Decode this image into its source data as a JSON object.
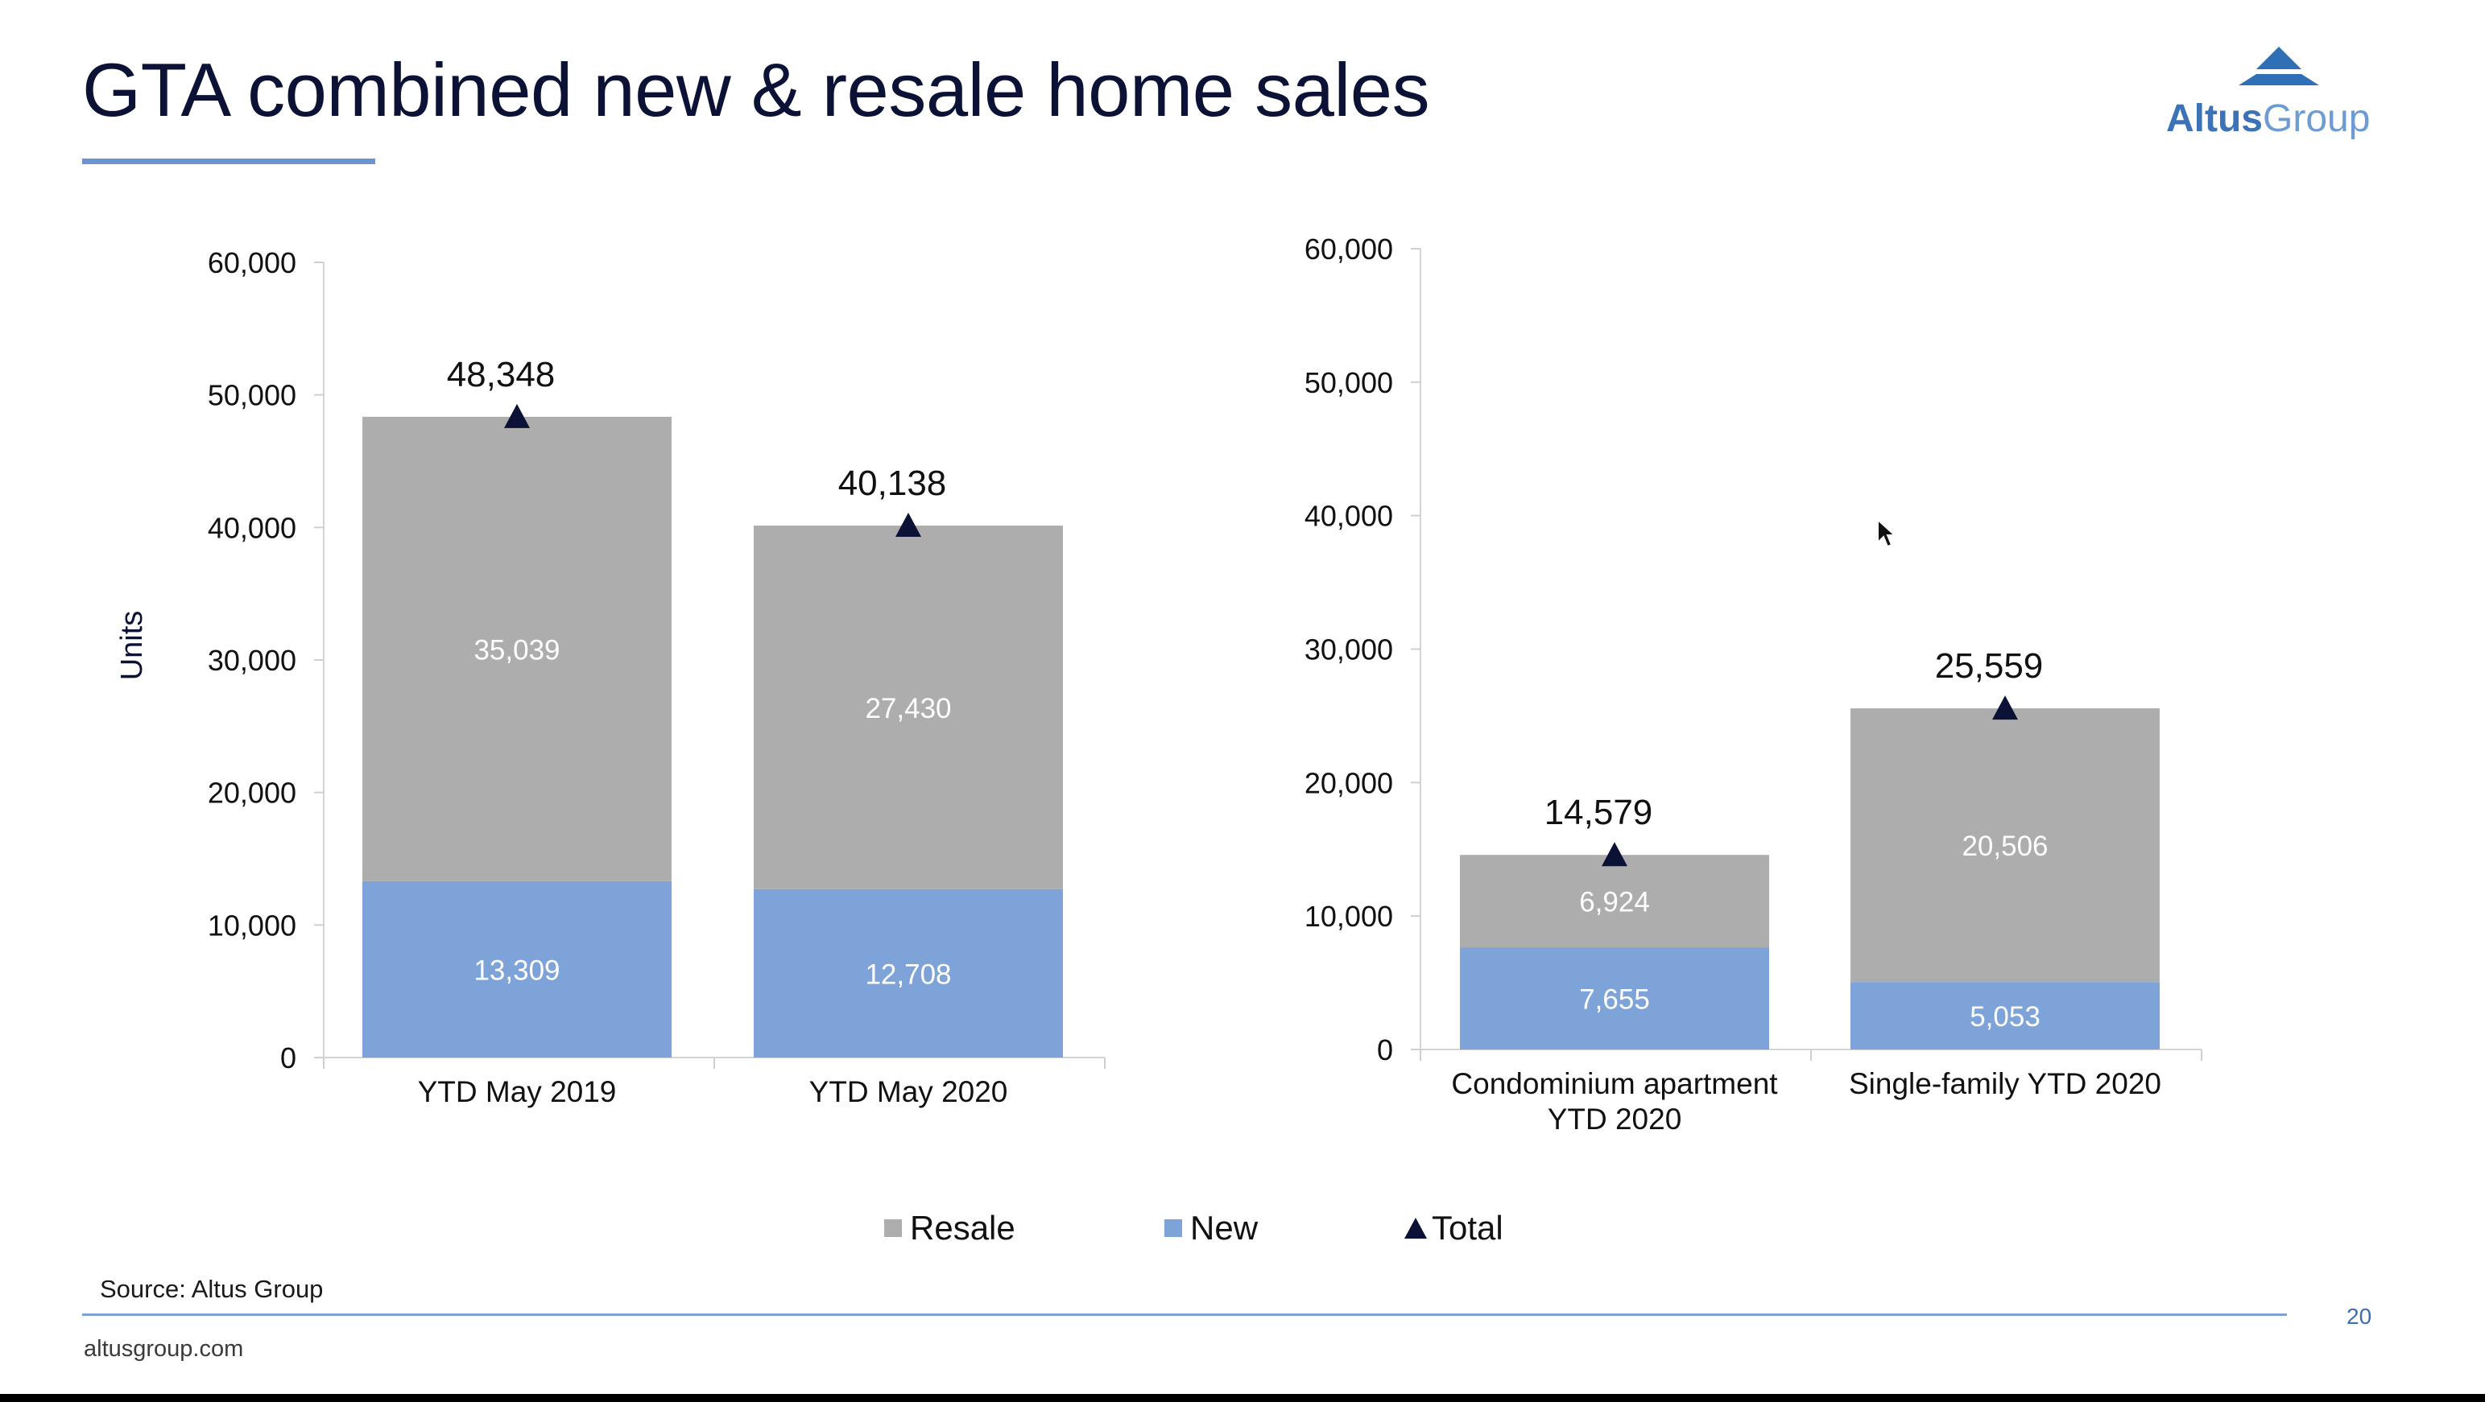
{
  "title": "GTA combined new & resale home sales",
  "logo": {
    "word1": "Altus",
    "word2": "Group"
  },
  "legend": {
    "resale": "Resale",
    "new": "New",
    "total": "Total"
  },
  "source": "Source: Altus Group",
  "page_number": "20",
  "website": "altusgroup.com",
  "colors": {
    "resale": "#adadad",
    "new": "#7ea3d9",
    "total": "#0b1236",
    "accent": "#6b93cf"
  },
  "chart_data": [
    {
      "type": "bar",
      "stacked": true,
      "ylabel": "Units",
      "ylim": [
        0,
        60000
      ],
      "yticks": [
        "0",
        "10,000",
        "20,000",
        "30,000",
        "40,000",
        "50,000",
        "60,000"
      ],
      "categories": [
        [
          "YTD May 2019"
        ],
        [
          "YTD May 2020"
        ]
      ],
      "series": [
        {
          "name": "New",
          "values": [
            13309,
            12708
          ]
        },
        {
          "name": "Resale",
          "values": [
            35039,
            27430
          ]
        }
      ],
      "totals": [
        48348,
        40138
      ],
      "value_labels": {
        "new": [
          "13,309",
          "12,708"
        ],
        "resale": [
          "35,039",
          "27,430"
        ],
        "total": [
          "48,348",
          "40,138"
        ]
      },
      "legend_position": "bottom"
    },
    {
      "type": "bar",
      "stacked": true,
      "ylabel": "",
      "ylim": [
        0,
        60000
      ],
      "yticks": [
        "0",
        "10,000",
        "20,000",
        "30,000",
        "40,000",
        "50,000",
        "60,000"
      ],
      "categories": [
        [
          "Condominium apartment",
          "YTD 2020"
        ],
        [
          "Single-family YTD 2020"
        ]
      ],
      "series": [
        {
          "name": "New",
          "values": [
            7655,
            5053
          ]
        },
        {
          "name": "Resale",
          "values": [
            6924,
            20506
          ]
        }
      ],
      "totals": [
        14579,
        25559
      ],
      "value_labels": {
        "new": [
          "7,655",
          "5,053"
        ],
        "resale": [
          "6,924",
          "20,506"
        ],
        "total": [
          "14,579",
          "25,559"
        ]
      },
      "legend_position": "bottom"
    }
  ]
}
